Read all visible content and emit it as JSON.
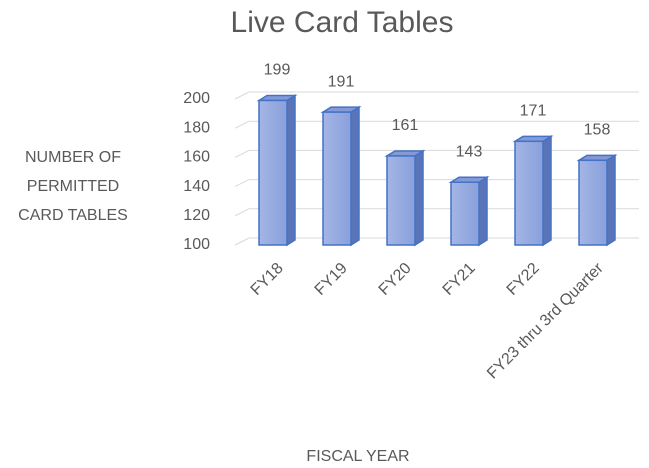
{
  "chart_data": {
    "type": "bar3d",
    "title": "Live Card Tables",
    "categories": [
      "FY18",
      "FY19",
      "FY20",
      "FY21",
      "FY22",
      "FY23 thru 3rd Quarter"
    ],
    "values": [
      199,
      191,
      161,
      143,
      171,
      158
    ],
    "color": "#4472c4",
    "x_label": "FISCAL YEAR",
    "y_label": "NUMBER OF PERMITTED CARD TABLES",
    "ylim": [
      100,
      200
    ],
    "yticks": [
      100,
      120,
      140,
      160,
      180,
      200
    ],
    "grid": true
  }
}
